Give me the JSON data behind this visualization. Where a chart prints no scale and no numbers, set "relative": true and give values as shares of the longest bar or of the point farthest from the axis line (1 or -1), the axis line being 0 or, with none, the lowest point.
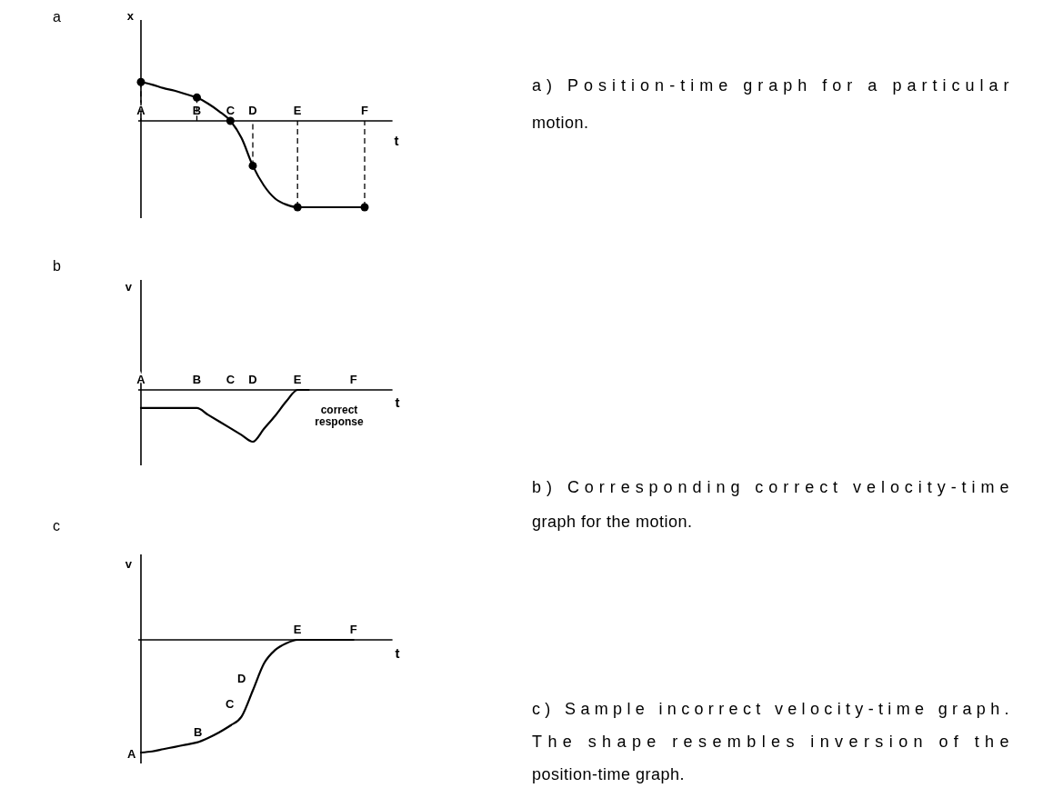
{
  "chart_data": [
    {
      "type": "line",
      "title": "a",
      "xlabel": "t",
      "ylabel": "x",
      "relative": true,
      "line_style": "solid",
      "categories": [
        "A",
        null,
        null,
        null,
        null,
        "B",
        null,
        null,
        "C",
        null,
        "D",
        null,
        null,
        null,
        "E",
        null,
        null,
        null,
        null,
        null,
        "F",
        null,
        null
      ],
      "series": [
        {
          "color": "#000000",
          "marker": "none",
          "values": [
            0.45,
            0.42,
            0.38,
            0.35,
            0.31,
            0.27,
            0.2,
            0.11,
            0.0,
            -0.2,
            -0.52,
            -0.75,
            -0.9,
            -0.97,
            -1,
            -1,
            -1,
            -1,
            -1,
            -1,
            -1,
            null,
            null
          ]
        },
        {
          "type": "scatter",
          "color": "#000000",
          "marker": "circle",
          "x": [
            "A",
            "B",
            "C",
            "D",
            "E",
            "F"
          ],
          "values": [
            0.45,
            0.27,
            0.0,
            -0.52,
            -1,
            -1
          ]
        }
      ],
      "annotations": [
        "a) Position-time graph for a particular motion."
      ]
    },
    {
      "type": "line",
      "title": "b",
      "xlabel": "t",
      "ylabel": "v",
      "relative": true,
      "line_style": "solid",
      "categories": [
        "A",
        null,
        null,
        null,
        null,
        "B",
        null,
        null,
        "C",
        null,
        "D",
        null,
        null,
        null,
        "E",
        null,
        null,
        null,
        null,
        "F",
        null,
        null,
        null
      ],
      "series": [
        {
          "color": "#000000",
          "marker": "none",
          "values": [
            -0.35,
            -0.35,
            -0.35,
            -0.35,
            -0.35,
            -0.35,
            -0.48,
            -0.61,
            -0.74,
            -0.87,
            -1,
            -0.75,
            -0.5,
            -0.22,
            0,
            0,
            null,
            null,
            null,
            null,
            null,
            null,
            null
          ]
        }
      ],
      "annotations": [
        "correct response",
        "b) Corresponding correct velocity-time graph for the motion."
      ]
    },
    {
      "type": "line",
      "title": "c",
      "xlabel": "t",
      "ylabel": "v",
      "relative": true,
      "line_style": "solid",
      "categories": [
        null,
        null,
        null,
        null,
        null,
        null,
        null,
        null,
        null,
        null,
        null,
        null,
        null,
        null,
        "E",
        null,
        null,
        null,
        null,
        "F",
        null,
        null,
        null
      ],
      "series": [
        {
          "color": "#000000",
          "marker": "none",
          "values": [
            -1,
            -0.99,
            -0.97,
            -0.95,
            -0.93,
            -0.91,
            -0.87,
            -0.82,
            -0.76,
            -0.68,
            -0.45,
            -0.21,
            -0.09,
            -0.03,
            0,
            0,
            0,
            0,
            0,
            0,
            null,
            null,
            null
          ]
        }
      ],
      "annotations": [
        "A",
        "B",
        "C",
        "D",
        "c) Sample incorrect velocity-time graph. The shape resembles inversion of the position-time graph."
      ]
    }
  ]
}
